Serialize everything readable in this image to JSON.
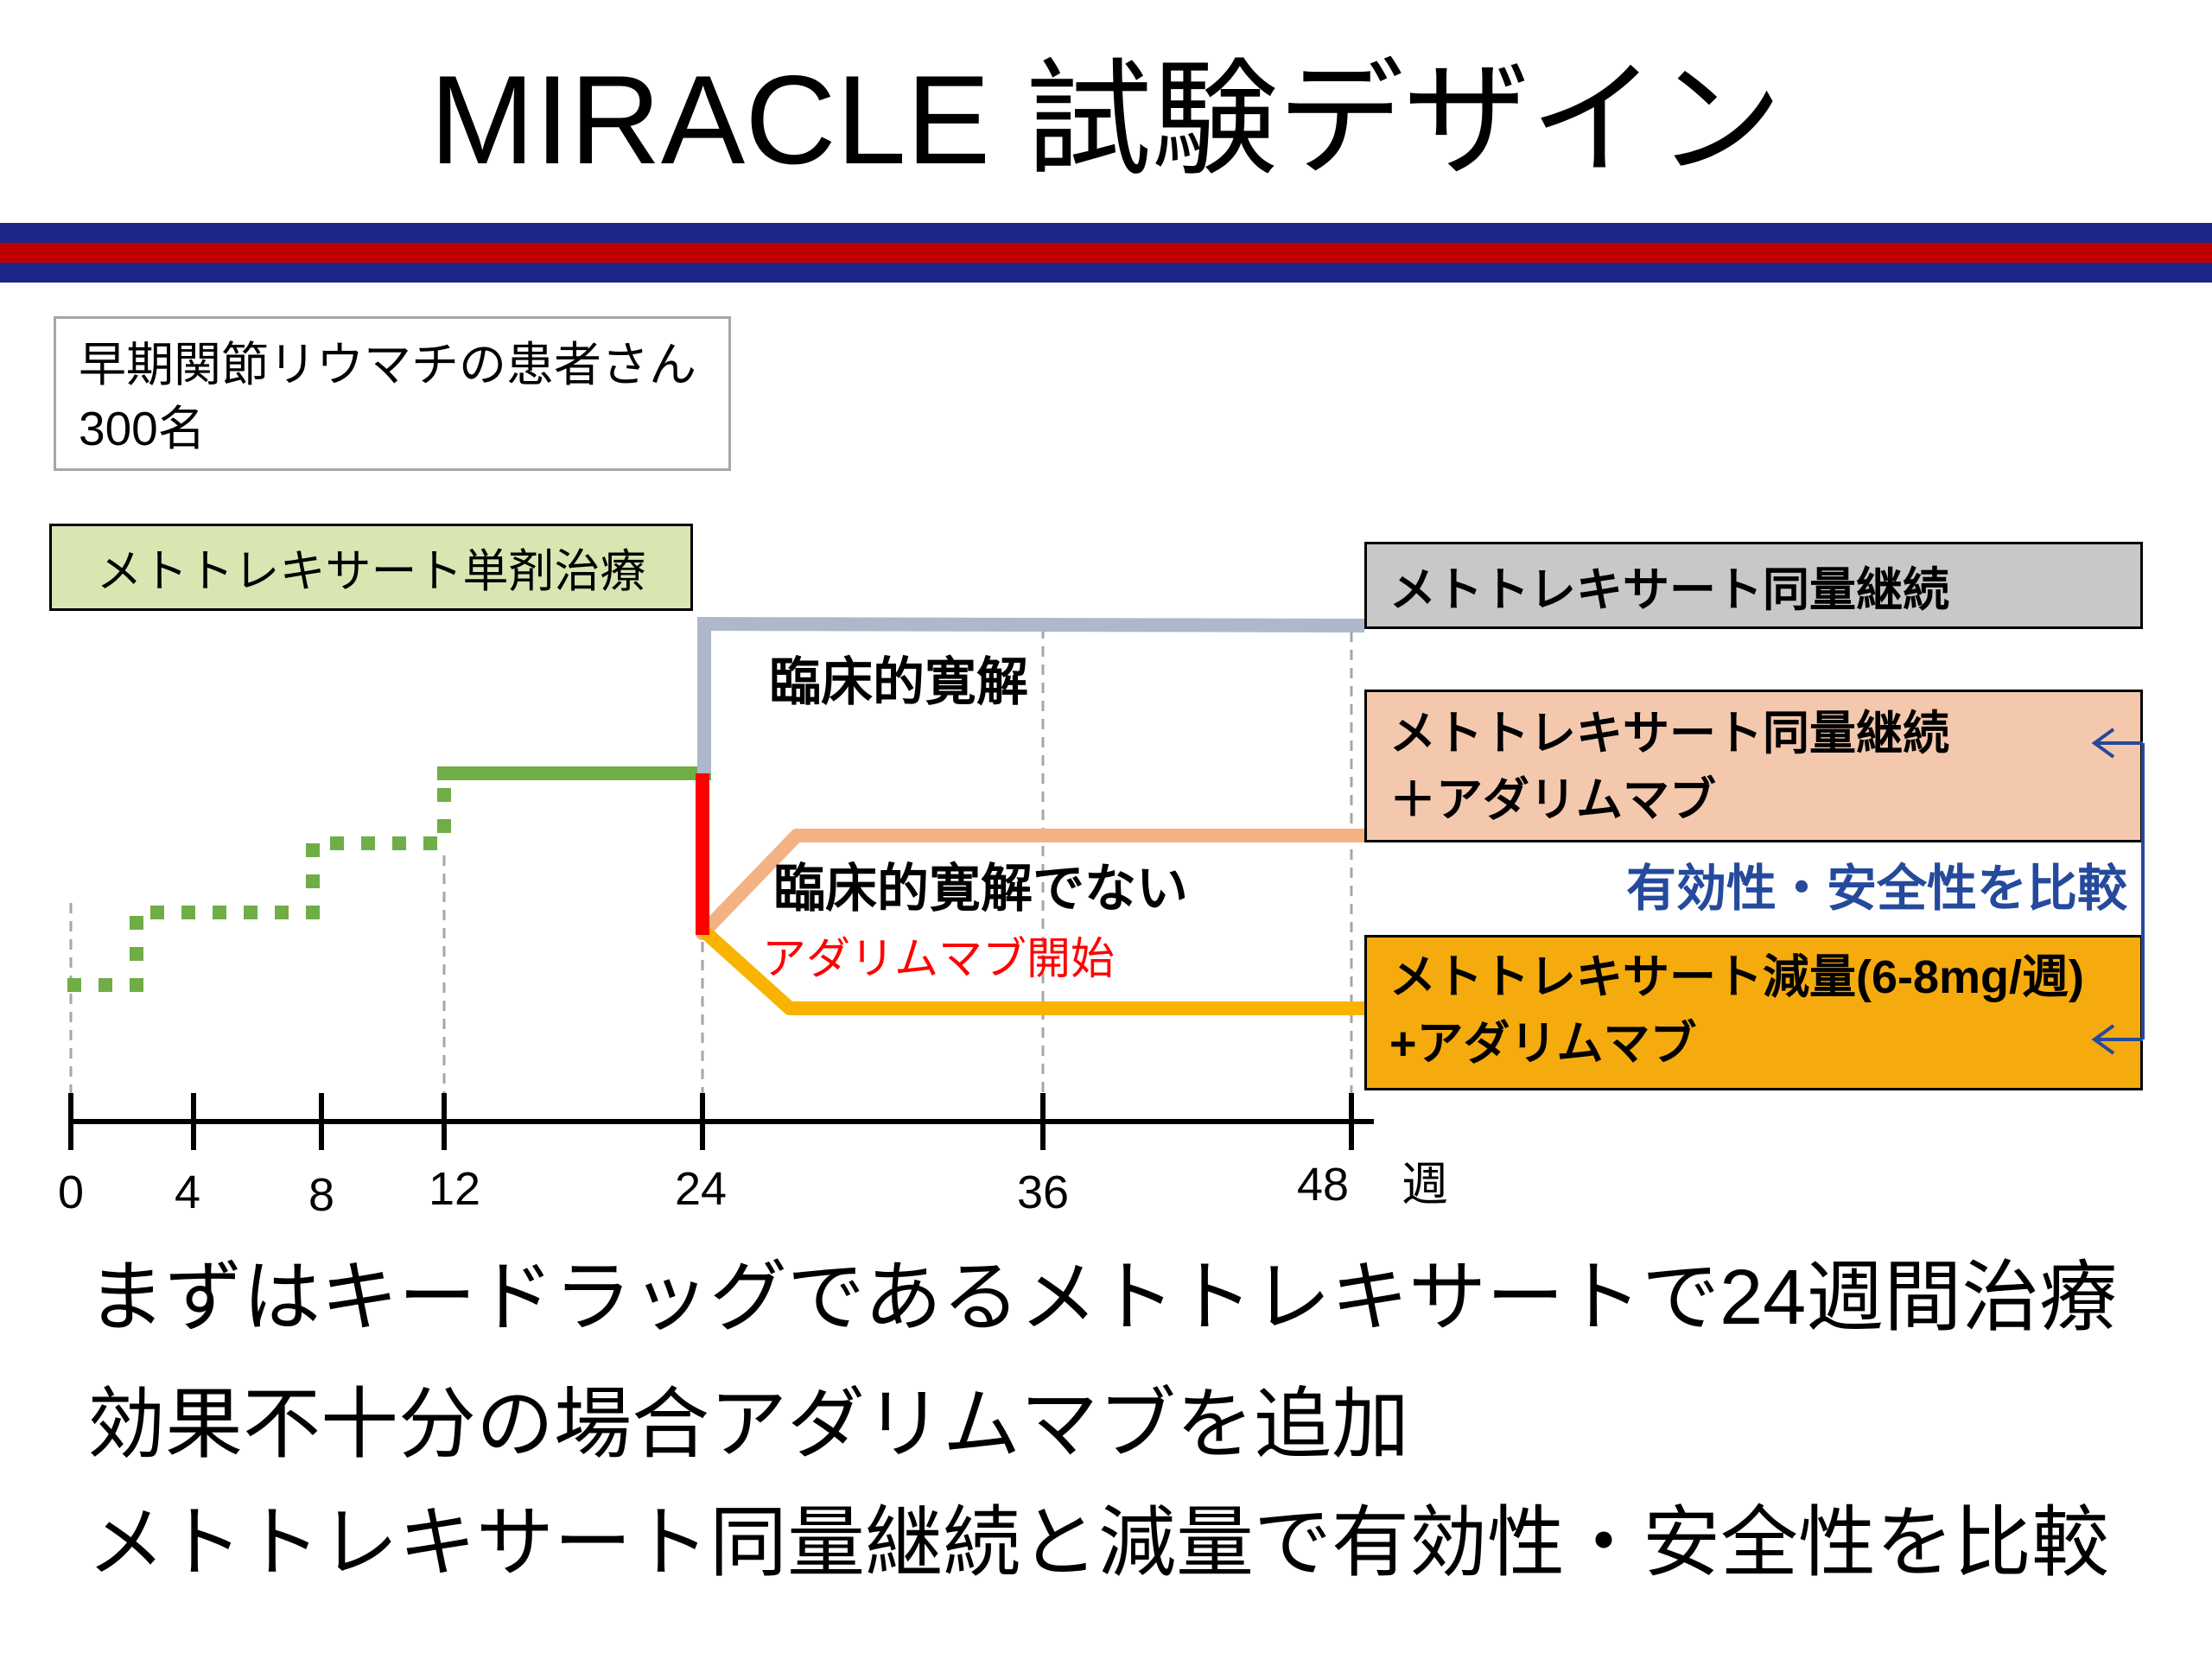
{
  "title": "MIRACLE 試験デザイン",
  "colors": {
    "stripe_navy": "#1b2688",
    "stripe_red": "#c00000",
    "mtx_green": "#70ad47",
    "remission_gray_blue": "#adb9ca",
    "adalimumab_start_red": "#ff0000",
    "continue_arm_peach": "#f4b183",
    "reduced_arm_orange": "#f9b300",
    "comparison_blue": "#254a9c",
    "gridline_gray": "#a6a6a6",
    "axis_black": "#000000"
  },
  "patients": {
    "line1": "早期関節リウマチの患者さん",
    "line2": "300名"
  },
  "initial_treatment": {
    "label": "メトトレキサート単剤治療",
    "color": "#d8e6b2"
  },
  "branches": {
    "remission": "臨床的寛解",
    "non_remission": "臨床的寛解でない",
    "adalimumab_start": "アダリムマブ開始"
  },
  "arms": {
    "mtx_continue": {
      "line1": "メトトレキサート同量継続",
      "color": "#c8c8c8"
    },
    "mtx_continue_ada": {
      "line1": "メトトレキサート同量継続",
      "line2": "＋アダリムマブ",
      "color": "#f4c8ad"
    },
    "mtx_reduced_ada": {
      "line1": "メトトレキサート減量(6-8mg/週)",
      "line2": "+アダリムマブ",
      "color": "#f5ab0e"
    }
  },
  "comparison": {
    "label": "有効性・安全性を比較"
  },
  "timeline": {
    "ticks": [
      "0",
      "4",
      "8",
      "12",
      "24",
      "36",
      "48"
    ],
    "unit": "週"
  },
  "summary": [
    "まずはキードラッグであるメトトレキサートで24週間治療",
    "効果不十分の場合アダリムマブを追加",
    "メトトレキサート同量継続と減量で有効性・安全性を比較"
  ]
}
